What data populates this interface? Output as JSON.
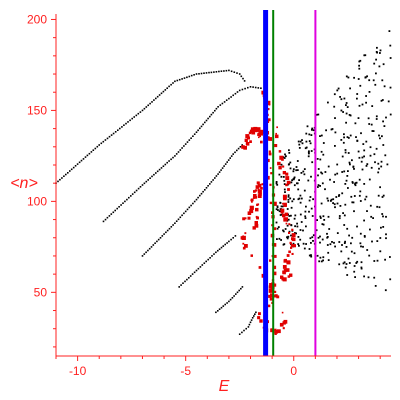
{
  "chart_data": {
    "type": "scatter",
    "xlabel": "E",
    "ylabel": "<n>",
    "xlim": [
      -11,
      4.5
    ],
    "ylim": [
      15,
      203
    ],
    "xticks": [
      -10,
      -5,
      0
    ],
    "yticks": [
      50,
      100,
      150,
      200
    ],
    "xtick_labels": [
      "-10",
      "-5",
      "0"
    ],
    "ytick_labels": [
      "50",
      "100",
      "150",
      "200"
    ],
    "grid": false,
    "colors": {
      "axis": "#ff2020",
      "black_points": "#000000",
      "red_points": "#e00000",
      "blue_line": "#0000ff",
      "green_line": "#008000",
      "magenta_line": "#e000e0"
    },
    "vertical_lines": [
      {
        "x": -1.3,
        "color": "#0000ff",
        "width": "thick"
      },
      {
        "x": -0.95,
        "color": "#008000",
        "width": "medium"
      },
      {
        "x": 1.0,
        "color": "#e000e0",
        "width": "medium"
      }
    ],
    "black_bands": [
      {
        "points": [
          [
            -11.0,
            110
          ],
          [
            -9.0,
            131
          ],
          [
            -7.0,
            150
          ],
          [
            -5.5,
            166
          ],
          [
            -4.5,
            170
          ],
          [
            -3.0,
            172
          ],
          [
            -2.5,
            170
          ],
          [
            -2.2,
            165
          ]
        ]
      },
      {
        "points": [
          [
            -8.8,
            89
          ],
          [
            -7.0,
            109
          ],
          [
            -5.5,
            125
          ],
          [
            -4.5,
            138
          ],
          [
            -3.5,
            152
          ],
          [
            -2.5,
            161
          ],
          [
            -2.0,
            163
          ],
          [
            -1.4,
            162
          ]
        ]
      },
      {
        "points": [
          [
            -7.0,
            70
          ],
          [
            -5.5,
            88
          ],
          [
            -4.5,
            101
          ],
          [
            -3.5,
            115
          ],
          [
            -2.8,
            126
          ],
          [
            -2.3,
            132
          ]
        ]
      },
      {
        "points": [
          [
            -5.3,
            53
          ],
          [
            -4.5,
            62
          ],
          [
            -3.6,
            72
          ],
          [
            -3.0,
            78
          ],
          [
            -2.6,
            82
          ]
        ]
      },
      {
        "points": [
          [
            -3.6,
            39
          ],
          [
            -3.0,
            45
          ],
          [
            -2.6,
            50
          ],
          [
            -2.3,
            54
          ]
        ]
      },
      {
        "points": [
          [
            -2.5,
            27
          ],
          [
            -2.1,
            31
          ],
          [
            -1.9,
            36
          ],
          [
            -1.7,
            40
          ]
        ]
      }
    ],
    "black_cloud": {
      "x_range": [
        -0.8,
        4.5
      ],
      "y_range": [
        45,
        203
      ],
      "count": 480
    },
    "red_clusters": [
      {
        "points": [
          [
            -2.3,
            128
          ],
          [
            -2.0,
            137
          ],
          [
            -1.8,
            141
          ],
          [
            -1.6,
            138
          ],
          [
            -1.4,
            133
          ]
        ]
      },
      {
        "points": [
          [
            -2.2,
            90
          ],
          [
            -1.9,
            99
          ],
          [
            -1.7,
            106
          ],
          [
            -1.5,
            110
          ],
          [
            -1.6,
            96
          ],
          [
            -1.8,
            84
          ]
        ]
      },
      {
        "points": [
          [
            -1.3,
            160
          ],
          [
            -1.2,
            152
          ],
          [
            -1.3,
            143
          ],
          [
            -1.1,
            118
          ],
          [
            -1.0,
            97
          ],
          [
            -0.9,
            80
          ],
          [
            -1.0,
            60
          ],
          [
            -1.1,
            45
          ]
        ]
      },
      {
        "points": [
          [
            -0.8,
            140
          ],
          [
            -0.6,
            120
          ],
          [
            -0.3,
            108
          ],
          [
            -0.5,
            95
          ],
          [
            -0.2,
            86
          ],
          [
            0.0,
            76
          ],
          [
            -0.3,
            68
          ],
          [
            -0.5,
            57
          ],
          [
            -0.2,
            62
          ]
        ]
      },
      {
        "points": [
          [
            -1.0,
            54
          ],
          [
            -0.9,
            49
          ],
          [
            -1.5,
            38
          ],
          [
            -1.3,
            31
          ],
          [
            -0.9,
            28
          ],
          [
            -0.3,
            35
          ],
          [
            -2.2,
            75
          ],
          [
            -2.4,
            83
          ]
        ]
      }
    ]
  }
}
